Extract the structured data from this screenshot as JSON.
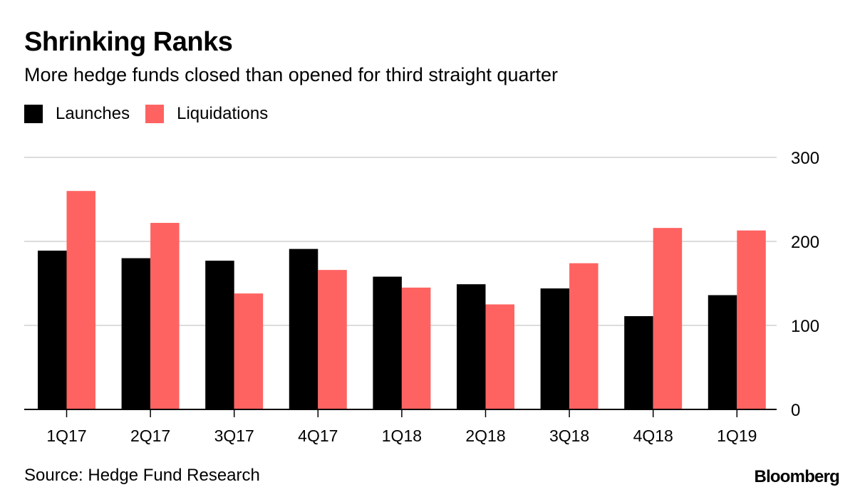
{
  "chart_data": {
    "type": "bar",
    "title": "Shrinking Ranks",
    "subtitle": "More hedge funds closed than opened for third straight quarter",
    "categories": [
      "1Q17",
      "2Q17",
      "3Q17",
      "4Q17",
      "1Q18",
      "2Q18",
      "3Q18",
      "4Q18",
      "1Q19"
    ],
    "series": [
      {
        "name": "Launches",
        "color": "#000000",
        "values": [
          189,
          180,
          177,
          191,
          158,
          149,
          144,
          111,
          136
        ]
      },
      {
        "name": "Liquidations",
        "color": "#ff6361",
        "values": [
          260,
          222,
          138,
          166,
          145,
          125,
          174,
          216,
          213
        ]
      }
    ],
    "xlabel": "",
    "ylabel": "",
    "ylim": [
      0,
      300
    ],
    "yticks": [
      0,
      100,
      200,
      300
    ],
    "ytick_labels": [
      "0",
      "100",
      "200",
      "300"
    ],
    "y_axis_position": "right",
    "grid": true,
    "legend_position": "top-left",
    "source": "Source: Hedge Fund Research",
    "brand": "Bloomberg"
  }
}
